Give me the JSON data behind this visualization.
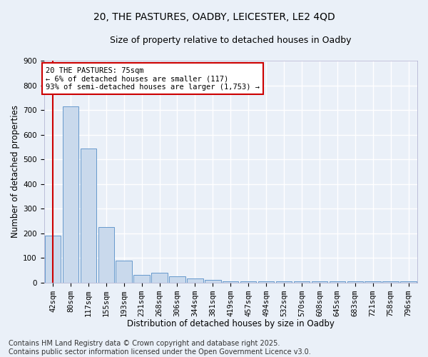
{
  "title_line1": "20, THE PASTURES, OADBY, LEICESTER, LE2 4QD",
  "title_line2": "Size of property relative to detached houses in Oadby",
  "xlabel": "Distribution of detached houses by size in Oadby",
  "ylabel": "Number of detached properties",
  "bin_labels": [
    "42sqm",
    "80sqm",
    "117sqm",
    "155sqm",
    "193sqm",
    "231sqm",
    "268sqm",
    "306sqm",
    "344sqm",
    "381sqm",
    "419sqm",
    "457sqm",
    "494sqm",
    "532sqm",
    "570sqm",
    "608sqm",
    "645sqm",
    "683sqm",
    "721sqm",
    "758sqm",
    "796sqm"
  ],
  "bar_values": [
    190,
    715,
    545,
    225,
    90,
    30,
    40,
    25,
    15,
    10,
    5,
    5,
    5,
    5,
    5,
    5,
    5,
    5,
    5,
    5,
    5
  ],
  "bar_color": "#c9d9ec",
  "bar_edge_color": "#6699cc",
  "vline_x": 0,
  "vline_color": "#cc0000",
  "annotation_text": "20 THE PASTURES: 75sqm\n← 6% of detached houses are smaller (117)\n93% of semi-detached houses are larger (1,753) →",
  "annotation_box_color": "#ffffff",
  "annotation_box_edge": "#cc0000",
  "ylim": [
    0,
    900
  ],
  "yticks": [
    0,
    100,
    200,
    300,
    400,
    500,
    600,
    700,
    800,
    900
  ],
  "footer_text": "Contains HM Land Registry data © Crown copyright and database right 2025.\nContains public sector information licensed under the Open Government Licence v3.0.",
  "bg_color": "#eaf0f8",
  "plot_bg_color": "#eaf0f8",
  "grid_color": "#ffffff",
  "title_fontsize": 10,
  "subtitle_fontsize": 9,
  "axis_label_fontsize": 8.5,
  "tick_fontsize": 7.5,
  "annotation_fontsize": 7.5,
  "footer_fontsize": 7
}
